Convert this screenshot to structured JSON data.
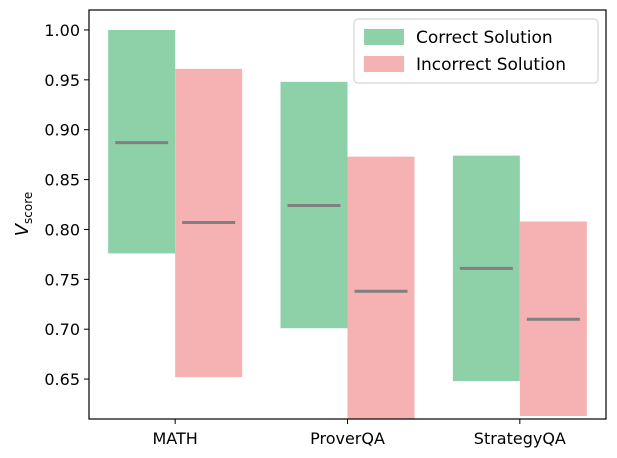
{
  "chart_data": {
    "type": "bar",
    "subtype": "floating-range-with-median",
    "categories": [
      "MATH",
      "ProverQA",
      "StrategyQA"
    ],
    "ylabel": "V",
    "ylabel_sub": "score",
    "ylim": [
      0.61,
      1.02
    ],
    "yticks": [
      0.65,
      0.7,
      0.75,
      0.8,
      0.85,
      0.9,
      0.95,
      1.0
    ],
    "ytick_labels": [
      "0.65",
      "0.70",
      "0.75",
      "0.80",
      "0.85",
      "0.90",
      "0.95",
      "1.00"
    ],
    "legend_position": "top-right",
    "grid": false,
    "series": [
      {
        "name": "Correct Solution",
        "color": "#8ed1a9",
        "low": [
          0.776,
          0.701,
          0.648
        ],
        "high": [
          1.0,
          0.948,
          0.874
        ],
        "median": [
          0.887,
          0.824,
          0.761
        ]
      },
      {
        "name": "Incorrect Solution",
        "color": "#f6b2b2",
        "low": [
          0.652,
          0.602,
          0.613
        ],
        "high": [
          0.961,
          0.873,
          0.808
        ],
        "median": [
          0.807,
          0.738,
          0.71
        ]
      }
    ],
    "median_color": "#808080"
  }
}
